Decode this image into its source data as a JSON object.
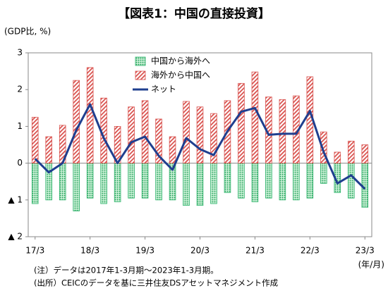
{
  "chart_data": {
    "type": "bar_line",
    "title": "【図表1：中国の直接投資】",
    "y_label": "(GDP比, %)",
    "x_label": "(年/月)",
    "notes": [
      "(注）データは2017年1-3月期～2023年1-3月期。",
      "(出所）CEICのデータを基に三井住友DSアセットマネジメント作成"
    ],
    "categories": [
      "17/3",
      null,
      null,
      null,
      "18/3",
      null,
      null,
      null,
      "19/3",
      null,
      null,
      null,
      "20/3",
      null,
      null,
      null,
      "21/3",
      null,
      null,
      null,
      "22/3",
      null,
      null,
      null,
      "23/3"
    ],
    "series": [
      {
        "name": "中国から海外へ",
        "kind": "bar",
        "color": "#2db36b",
        "values": [
          -1.1,
          -1.0,
          -1.0,
          -1.3,
          -0.95,
          -1.1,
          -1.05,
          -0.95,
          -0.95,
          -1.0,
          -1.0,
          -1.15,
          -1.15,
          -1.1,
          -0.8,
          -0.95,
          -1.05,
          -0.95,
          -1.0,
          -1.0,
          -0.95,
          -0.55,
          -0.8,
          -0.95,
          -1.2
        ]
      },
      {
        "name": "海外から中国へ",
        "kind": "bar",
        "color": "#d9534f",
        "values": [
          1.25,
          0.72,
          1.03,
          2.25,
          2.6,
          1.77,
          1.0,
          1.53,
          1.7,
          1.2,
          0.72,
          1.68,
          1.53,
          1.35,
          1.7,
          2.17,
          2.48,
          1.8,
          1.73,
          1.83,
          2.35,
          0.85,
          0.3,
          0.6,
          0.5
        ]
      },
      {
        "name": "ネット",
        "kind": "line",
        "color": "#1f3f8f",
        "values": [
          0.12,
          -0.25,
          0.0,
          0.9,
          1.6,
          0.68,
          0.0,
          0.57,
          0.72,
          0.2,
          -0.18,
          0.68,
          0.38,
          0.22,
          0.87,
          1.4,
          1.5,
          0.77,
          0.8,
          0.8,
          1.42,
          0.3,
          -0.55,
          -0.33,
          -0.7
        ]
      }
    ],
    "ylim": [
      -2,
      3
    ],
    "yticks": [
      {
        "value": -2,
        "label": "▲ 2"
      },
      {
        "value": -1,
        "label": "▲ 1"
      },
      0,
      1,
      2,
      3
    ],
    "grid": false,
    "legend": "upper center"
  }
}
